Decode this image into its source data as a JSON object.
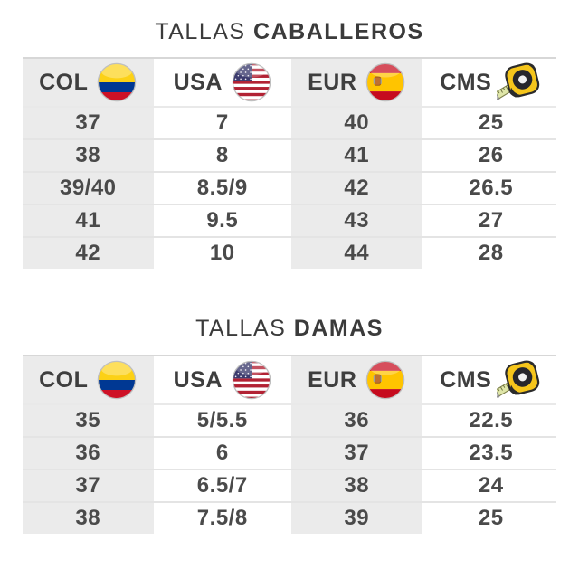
{
  "colors": {
    "header_shade": "#ebebeb",
    "text": "#4a4a4a",
    "title": "#3b3b3b",
    "divider": "#e4e4e4",
    "table_top_border": "#d7d7d7",
    "flag_colombia": [
      "#FCD116",
      "#003893",
      "#CE1126"
    ],
    "flag_usa": [
      "#B22234",
      "#FFFFFF",
      "#3C3B6E"
    ],
    "flag_spain": [
      "#C60B1E",
      "#FFC400"
    ],
    "tape_measure": [
      "#F5C51B",
      "#26262B",
      "#DFE6A8"
    ]
  },
  "chart_data": [
    {
      "type": "table",
      "title": "TALLAS CABALLEROS",
      "title_regular": "TALLAS",
      "title_bold": "CABALLEROS",
      "columns": [
        {
          "label": "COL",
          "icon": "colombia-flag-icon"
        },
        {
          "label": "USA",
          "icon": "usa-flag-icon"
        },
        {
          "label": "EUR",
          "icon": "spain-flag-icon"
        },
        {
          "label": "CMS",
          "icon": "tape-measure-icon"
        }
      ],
      "rows": [
        [
          "37",
          "7",
          "40",
          "25"
        ],
        [
          "38",
          "8",
          "41",
          "26"
        ],
        [
          "39/40",
          "8.5/9",
          "42",
          "26.5"
        ],
        [
          "41",
          "9.5",
          "43",
          "27"
        ],
        [
          "42",
          "10",
          "44",
          "28"
        ]
      ]
    },
    {
      "type": "table",
      "title": "TALLAS DAMAS",
      "title_regular": "TALLAS",
      "title_bold": "DAMAS",
      "columns": [
        {
          "label": "COL",
          "icon": "colombia-flag-icon"
        },
        {
          "label": "USA",
          "icon": "usa-flag-icon"
        },
        {
          "label": "EUR",
          "icon": "spain-flag-icon"
        },
        {
          "label": "CMS",
          "icon": "tape-measure-icon"
        }
      ],
      "rows": [
        [
          "35",
          "5/5.5",
          "36",
          "22.5"
        ],
        [
          "36",
          "6",
          "37",
          "23.5"
        ],
        [
          "37",
          "6.5/7",
          "38",
          "24"
        ],
        [
          "38",
          "7.5/8",
          "39",
          "25"
        ]
      ]
    }
  ]
}
